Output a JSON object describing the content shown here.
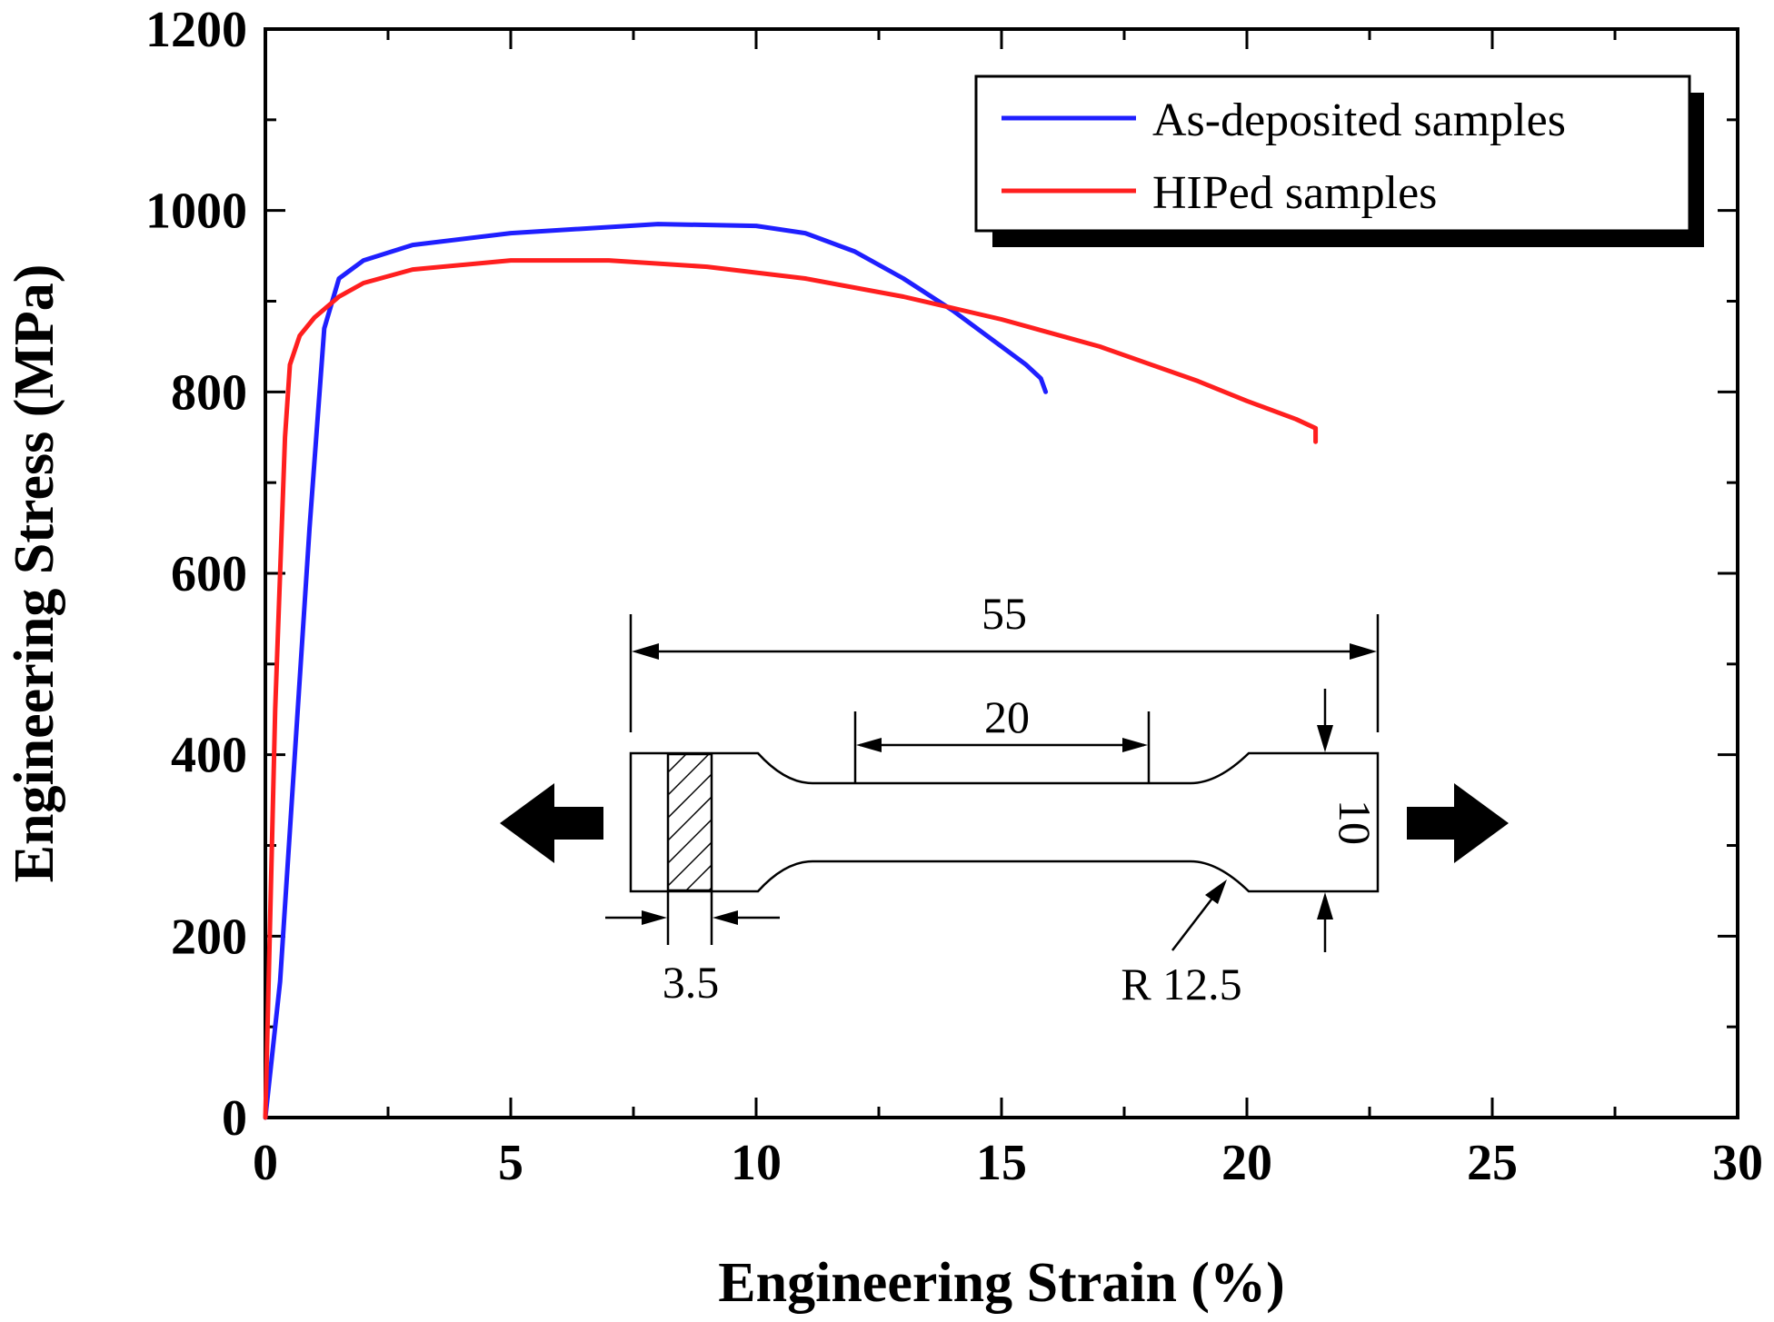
{
  "chart_data": {
    "type": "line",
    "xlabel": "Engineering Strain (%)",
    "ylabel": "Engineering Stress (MPa)",
    "xlim": [
      0,
      30
    ],
    "ylim": [
      0,
      1200
    ],
    "x_ticks": [
      "0",
      "5",
      "10",
      "15",
      "20",
      "25",
      "30"
    ],
    "y_ticks": [
      "0",
      "200",
      "400",
      "600",
      "800",
      "1000",
      "1200"
    ],
    "legend_position": "top-right",
    "series": [
      {
        "name": "As-deposited samples",
        "color": "#1f1fff",
        "x": [
          0,
          0.3,
          0.6,
          0.9,
          1.2,
          1.5,
          2,
          3,
          5,
          8,
          10,
          11,
          12,
          13,
          14,
          15,
          15.5,
          15.8,
          15.9
        ],
        "y": [
          0,
          150,
          400,
          650,
          870,
          925,
          945,
          962,
          975,
          985,
          983,
          975,
          955,
          925,
          890,
          850,
          830,
          815,
          800
        ]
      },
      {
        "name": "HIPed samples",
        "color": "#ff1f1f",
        "x": [
          0,
          0.2,
          0.4,
          0.5,
          0.7,
          1,
          1.5,
          2,
          3,
          5,
          7,
          9,
          11,
          13,
          15,
          17,
          19,
          20,
          21,
          21.4,
          21.4
        ],
        "y": [
          0,
          450,
          750,
          830,
          862,
          882,
          905,
          920,
          935,
          945,
          945,
          938,
          925,
          905,
          880,
          850,
          812,
          790,
          770,
          760,
          745
        ]
      }
    ]
  },
  "inset": {
    "total_length": "55",
    "gauge_length": "20",
    "width": "10",
    "grip_hatch": "3.5",
    "radius": "R 12.5"
  }
}
